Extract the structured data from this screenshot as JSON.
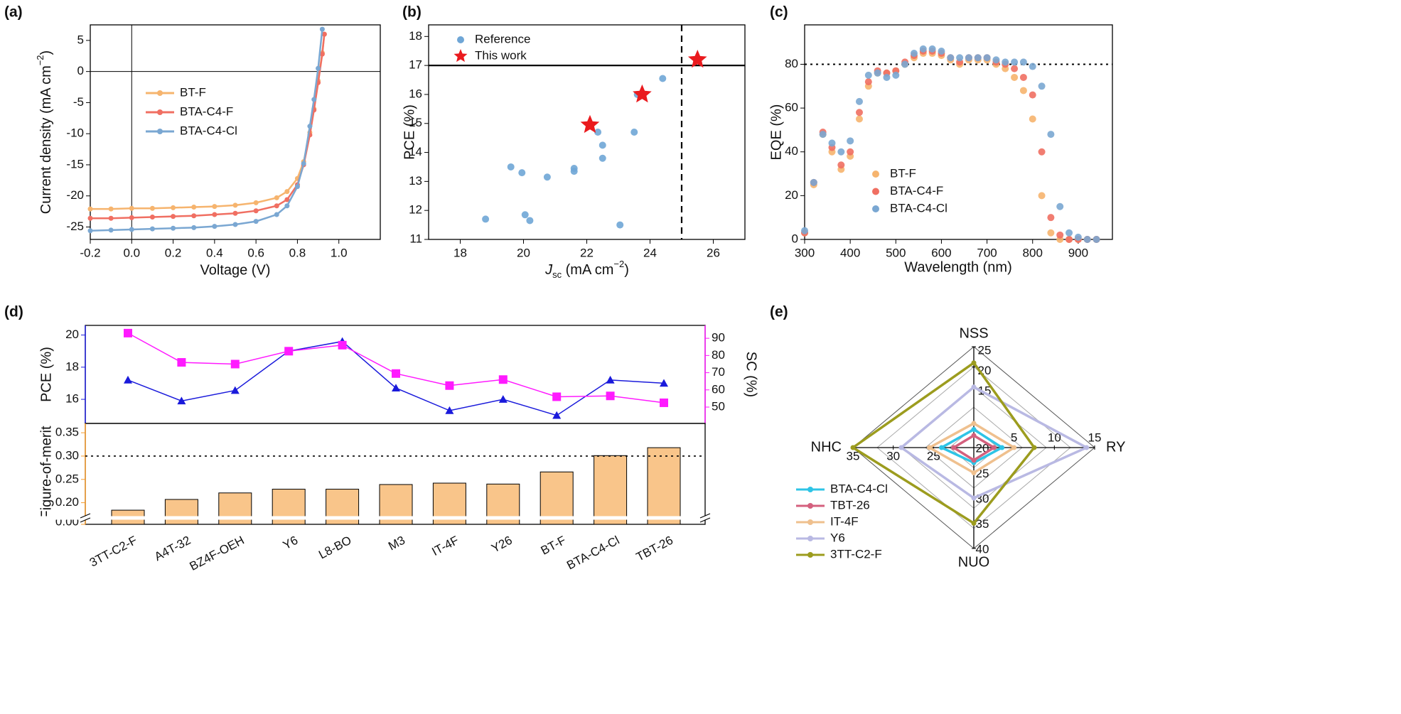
{
  "chart_data": [
    {
      "type": "line",
      "panel_label": "(a)",
      "x_label": "Voltage (V)",
      "y_label": {
        "text": "Current density (mA cm",
        "sup": "−2",
        "end": ")"
      },
      "x": [
        -0.2,
        -0.1,
        0,
        0.1,
        0.2,
        0.3,
        0.4,
        0.5,
        0.6,
        0.7,
        0.75,
        0.8,
        0.83,
        0.86,
        0.88,
        0.9,
        0.92,
        0.93
      ],
      "xlim": [
        -0.2,
        1.2
      ],
      "xticks": [
        -0.2,
        {
          "value": 0,
          "label": "0.0"
        },
        0.2,
        0.4,
        0.6,
        0.8,
        {
          "value": 1,
          "label": "1.0"
        }
      ],
      "ylim": [
        -27,
        7.5
      ],
      "yticks": [
        -25,
        -20,
        -15,
        -10,
        -5,
        0,
        5
      ],
      "origin_lines": true,
      "series": [
        {
          "name": "BT-F",
          "color": "#f6b46e",
          "values": [
            -22.1,
            -22.1,
            -22.0,
            -22.0,
            -21.9,
            -21.8,
            -21.7,
            -21.5,
            -21.1,
            -20.3,
            -19.3,
            -17.2,
            -14.5,
            -9.8,
            -6.0,
            -1.5,
            3.0,
            6.0
          ]
        },
        {
          "name": "BTA-C4-F",
          "color": "#f06f62",
          "values": [
            -23.6,
            -23.6,
            -23.5,
            -23.4,
            -23.3,
            -23.2,
            -23.0,
            -22.8,
            -22.4,
            -21.6,
            -20.6,
            -18.2,
            -15.0,
            -10.2,
            -6.2,
            -1.8,
            2.8,
            6.0
          ]
        },
        {
          "name": "BTA-C4-Cl",
          "color": "#7aa7d2",
          "values": [
            -25.6,
            -25.5,
            -25.4,
            -25.3,
            -25.2,
            -25.1,
            -24.9,
            -24.6,
            -24.1,
            -23.0,
            -21.6,
            -18.5,
            -14.8,
            -8.8,
            -4.5,
            0.5,
            6.8,
            null
          ]
        }
      ]
    },
    {
      "type": "scatter",
      "panel_label": "(b)",
      "x_label": {
        "italic": "J",
        "sub": "sc",
        "text": " (mA cm",
        "sup": "−2",
        "end": ")"
      },
      "y_label": "PCE (%)",
      "xlim": [
        17,
        27
      ],
      "xticks": [
        18,
        20,
        22,
        24,
        26
      ],
      "ylim": [
        11,
        18.4
      ],
      "yticks": [
        11,
        12,
        13,
        14,
        15,
        16,
        17,
        18
      ],
      "hline": 17,
      "hline_style": "solid",
      "vline": 25,
      "vline_style": "dashed",
      "series": [
        {
          "name": "Reference",
          "color": "#6fa6d6",
          "marker": "circle",
          "x": [
            18.8,
            19.6,
            19.95,
            20.05,
            20.2,
            20.75,
            21.6,
            21.6,
            22.35,
            22.5,
            22.5,
            23.05,
            23.5,
            23.6,
            24.4
          ],
          "values": [
            11.7,
            13.5,
            13.3,
            11.85,
            11.65,
            13.15,
            13.45,
            13.35,
            14.7,
            14.25,
            13.8,
            11.5,
            14.7,
            16.0,
            16.55
          ]
        },
        {
          "name": "This work",
          "color": "#ea1a1e",
          "marker": "star",
          "x": [
            22.1,
            23.75,
            25.5
          ],
          "values": [
            14.95,
            16.0,
            17.2
          ]
        }
      ]
    },
    {
      "type": "scatter",
      "panel_label": "(c)",
      "x_label": "Wavelength (nm)",
      "y_label": "EQE (%)",
      "x": [
        300,
        320,
        340,
        360,
        380,
        400,
        420,
        440,
        460,
        480,
        500,
        520,
        540,
        560,
        580,
        600,
        620,
        640,
        660,
        680,
        700,
        720,
        740,
        760,
        780,
        800,
        820,
        840,
        860,
        880,
        900,
        920,
        940
      ],
      "xlim": [
        300,
        975
      ],
      "xticks": [
        300,
        400,
        500,
        600,
        700,
        800,
        900
      ],
      "ylim": [
        0,
        98
      ],
      "yticks": [
        0,
        20,
        40,
        60,
        80
      ],
      "hline": 80,
      "hline_style": "dotted",
      "series": [
        {
          "name": "BT-F",
          "color": "#f6b46e",
          "marker": "circle",
          "values": [
            3,
            25,
            48,
            40,
            32,
            38,
            55,
            70,
            76,
            76,
            77,
            80,
            83,
            85,
            85,
            84,
            82,
            80,
            82,
            82,
            82,
            80,
            78,
            74,
            68,
            55,
            20,
            3,
            0,
            0,
            0,
            0,
            0
          ]
        },
        {
          "name": "BTA-C4-F",
          "color": "#f06f62",
          "marker": "circle",
          "values": [
            3,
            26,
            49,
            42,
            34,
            40,
            58,
            72,
            77,
            76,
            77,
            81,
            84,
            86,
            86,
            85,
            83,
            81,
            83,
            83,
            83,
            81,
            80,
            78,
            74,
            66,
            40,
            10,
            2,
            0,
            0,
            0,
            0
          ]
        },
        {
          "name": "BTA-C4-Cl",
          "color": "#7aa7d2",
          "marker": "circle",
          "values": [
            4,
            26,
            48,
            44,
            40,
            45,
            63,
            75,
            76,
            74,
            75,
            80,
            85,
            87,
            87,
            86,
            83,
            83,
            83,
            83,
            83,
            82,
            81,
            81,
            81,
            79,
            70,
            48,
            15,
            3,
            1,
            0,
            0
          ]
        }
      ]
    },
    {
      "type": "line",
      "panel_label": "(d)",
      "y_label": "PCE (%)",
      "y_color": "#1a1adb",
      "y2_label": "SC (%)",
      "y2_color": "#ff1aff",
      "ylim": [
        14.5,
        20.6
      ],
      "yticks": [
        16,
        18,
        20
      ],
      "y2lim": [
        40.5,
        97.5
      ],
      "y2ticks": [
        50,
        60,
        70,
        80,
        90
      ],
      "series": [
        {
          "color": "#1a1adb",
          "marker": "triangle",
          "axis": "y",
          "values": [
            17.2,
            15.9,
            16.55,
            19.0,
            19.6,
            16.7,
            15.3,
            16.0,
            15.0,
            17.2,
            17.0
          ]
        },
        {
          "color": "#ff1aff",
          "marker": "square",
          "axis": "y2",
          "values": [
            93,
            76,
            75,
            82.5,
            86,
            69.5,
            62.5,
            66,
            56,
            56.5,
            52.5
          ]
        }
      ]
    },
    {
      "type": "bar",
      "y_label": "Figure-of-merit",
      "y_color": "#f59a2a",
      "color": "#f9c58a",
      "categories": [
        "3TT-C2-F",
        "A4T-32",
        "BZ4F-OEH",
        "Y6",
        "L8-BO",
        "M3",
        "IT-4F",
        "Y26",
        "BT-F",
        "BTA-C4-Cl",
        "TBT-26"
      ],
      "values": [
        0.184,
        0.207,
        0.221,
        0.229,
        0.229,
        0.239,
        0.242,
        0.24,
        0.266,
        0.301,
        0.318
      ],
      "ylim": [
        0.175,
        0.37
      ],
      "yticks": [
        {
          "value": 0.2,
          "label": "0.20"
        },
        {
          "value": 0.25,
          "label": "0.25"
        },
        {
          "value": 0.3,
          "label": "0.30"
        },
        {
          "value": 0.35,
          "label": "0.35"
        }
      ],
      "ybreak_tick": {
        "value": 0,
        "label": "0.00"
      },
      "hline": 0.3,
      "hline_style": "dotted"
    },
    {
      "type": "radar",
      "panel_label": "(e)",
      "axes": [
        {
          "name": "NSS",
          "lim": [
            0,
            25
          ],
          "ticks": [
            15,
            20,
            25
          ]
        },
        {
          "name": "RY",
          "lim": [
            0,
            15
          ],
          "ticks": [
            5,
            10,
            15
          ]
        },
        {
          "name": "NUO",
          "lim": [
            20,
            40
          ],
          "ticks": [
            20,
            25,
            30,
            35,
            40
          ]
        },
        {
          "name": "NHC",
          "lim": [
            20,
            35
          ],
          "ticks": [
            25,
            30,
            35
          ]
        }
      ],
      "series": [
        {
          "name": "BTA-C4-Cl",
          "color": "#2ec4e6",
          "values": [
            4.5,
            3.5,
            23,
            24
          ]
        },
        {
          "name": "TBT-26",
          "color": "#d4607e",
          "values": [
            3,
            2.5,
            22.5,
            22.5
          ]
        },
        {
          "name": "IT-4F",
          "color": "#efc08e",
          "values": [
            6,
            5,
            25,
            25.5
          ]
        },
        {
          "name": "Y6",
          "color": "#b9b9e3",
          "values": [
            15,
            14,
            30,
            29
          ]
        },
        {
          "name": "3TT-C2-F",
          "color": "#9c9c1e",
          "values": [
            21,
            7.5,
            35,
            35
          ]
        }
      ]
    }
  ]
}
